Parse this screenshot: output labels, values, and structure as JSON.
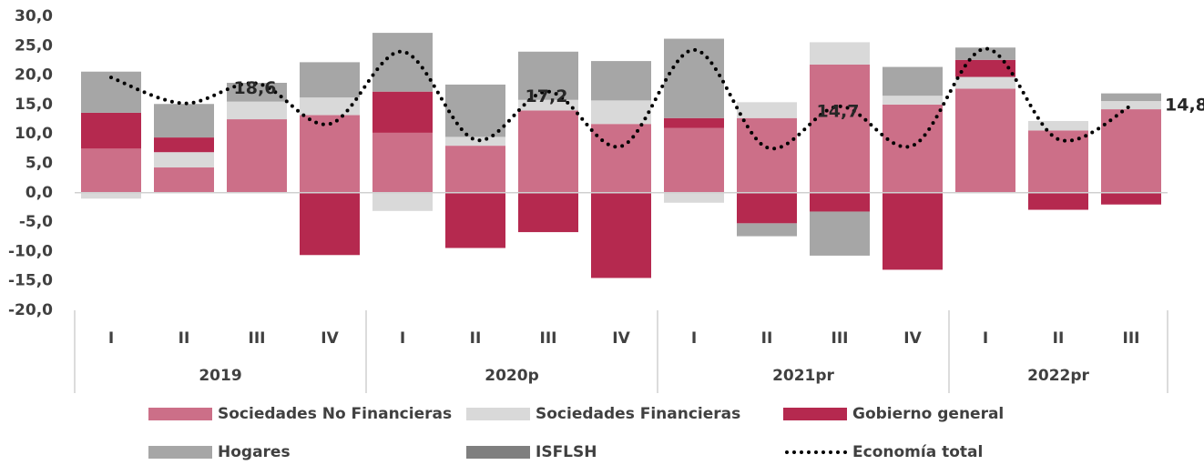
{
  "chart_data": {
    "type": "bar",
    "stacked": true,
    "groups": [
      {
        "name": "2019",
        "categories": [
          "I",
          "II",
          "III",
          "IV"
        ]
      },
      {
        "name": "2020p",
        "categories": [
          "I",
          "II",
          "III",
          "IV"
        ]
      },
      {
        "name": "2021pr",
        "categories": [
          "I",
          "II",
          "III",
          "IV"
        ]
      },
      {
        "name": "2022pr",
        "categories": [
          "I",
          "II",
          "III"
        ]
      }
    ],
    "series": [
      {
        "name": "Sociedades No Financieras",
        "color": "#cc6f88",
        "values": [
          7.5,
          4.3,
          12.5,
          13.2,
          10.2,
          8.0,
          14.0,
          11.7,
          11.0,
          12.7,
          21.8,
          15.0,
          17.7,
          10.6,
          14.2
        ]
      },
      {
        "name": "Sociedades Financieras",
        "color": "#d9d9d9",
        "values": [
          -1.0,
          2.6,
          3.0,
          3.0,
          -3.1,
          1.5,
          1.8,
          4.0,
          -1.7,
          2.7,
          3.8,
          1.5,
          2.0,
          1.6,
          1.4
        ]
      },
      {
        "name": "Gobierno general",
        "color": "#b5294f",
        "values": [
          6.1,
          2.5,
          0,
          -10.6,
          7.0,
          -9.4,
          -6.7,
          -14.5,
          1.7,
          -5.2,
          -3.2,
          -13.1,
          2.9,
          -2.9,
          -2.0
        ]
      },
      {
        "name": "Hogares",
        "color": "#a6a6a6",
        "values": [
          7.0,
          5.7,
          3.2,
          6.0,
          10.0,
          8.9,
          8.2,
          6.7,
          13.5,
          -2.2,
          -7.5,
          4.9,
          2.1,
          0,
          1.3
        ]
      },
      {
        "name": "ISFLSH",
        "color": "#7f7f7f",
        "values": [
          0,
          0,
          0,
          0,
          0,
          0,
          0,
          0,
          0,
          0,
          0,
          0,
          0,
          0,
          0
        ]
      },
      {
        "name": "Economía total",
        "type": "line",
        "color": "#000000",
        "values": [
          19.6,
          15.2,
          18.6,
          11.7,
          24.0,
          9.0,
          17.2,
          7.9,
          24.3,
          7.7,
          14.7,
          8.0,
          24.5,
          9.1,
          14.8
        ],
        "value_labels": [
          null,
          null,
          "18,6",
          null,
          null,
          null,
          "17,2",
          null,
          null,
          null,
          "14,7",
          null,
          null,
          null,
          "14,8"
        ]
      }
    ],
    "ylim": [
      -20,
      30
    ],
    "yticks": [
      {
        "value": -20,
        "label": "-20,0"
      },
      {
        "value": -15,
        "label": "-15,0"
      },
      {
        "value": -10,
        "label": "-10,0"
      },
      {
        "value": -5,
        "label": "-5,0"
      },
      {
        "value": 0,
        "label": "0,0"
      },
      {
        "value": 5,
        "label": "5,0"
      },
      {
        "value": 10,
        "label": "10,0"
      },
      {
        "value": 15,
        "label": "15,0"
      },
      {
        "value": 20,
        "label": "20,0"
      },
      {
        "value": 25,
        "label": "25,0"
      },
      {
        "value": 30,
        "label": "30,0"
      }
    ],
    "grid": false,
    "legend": "bottom"
  }
}
